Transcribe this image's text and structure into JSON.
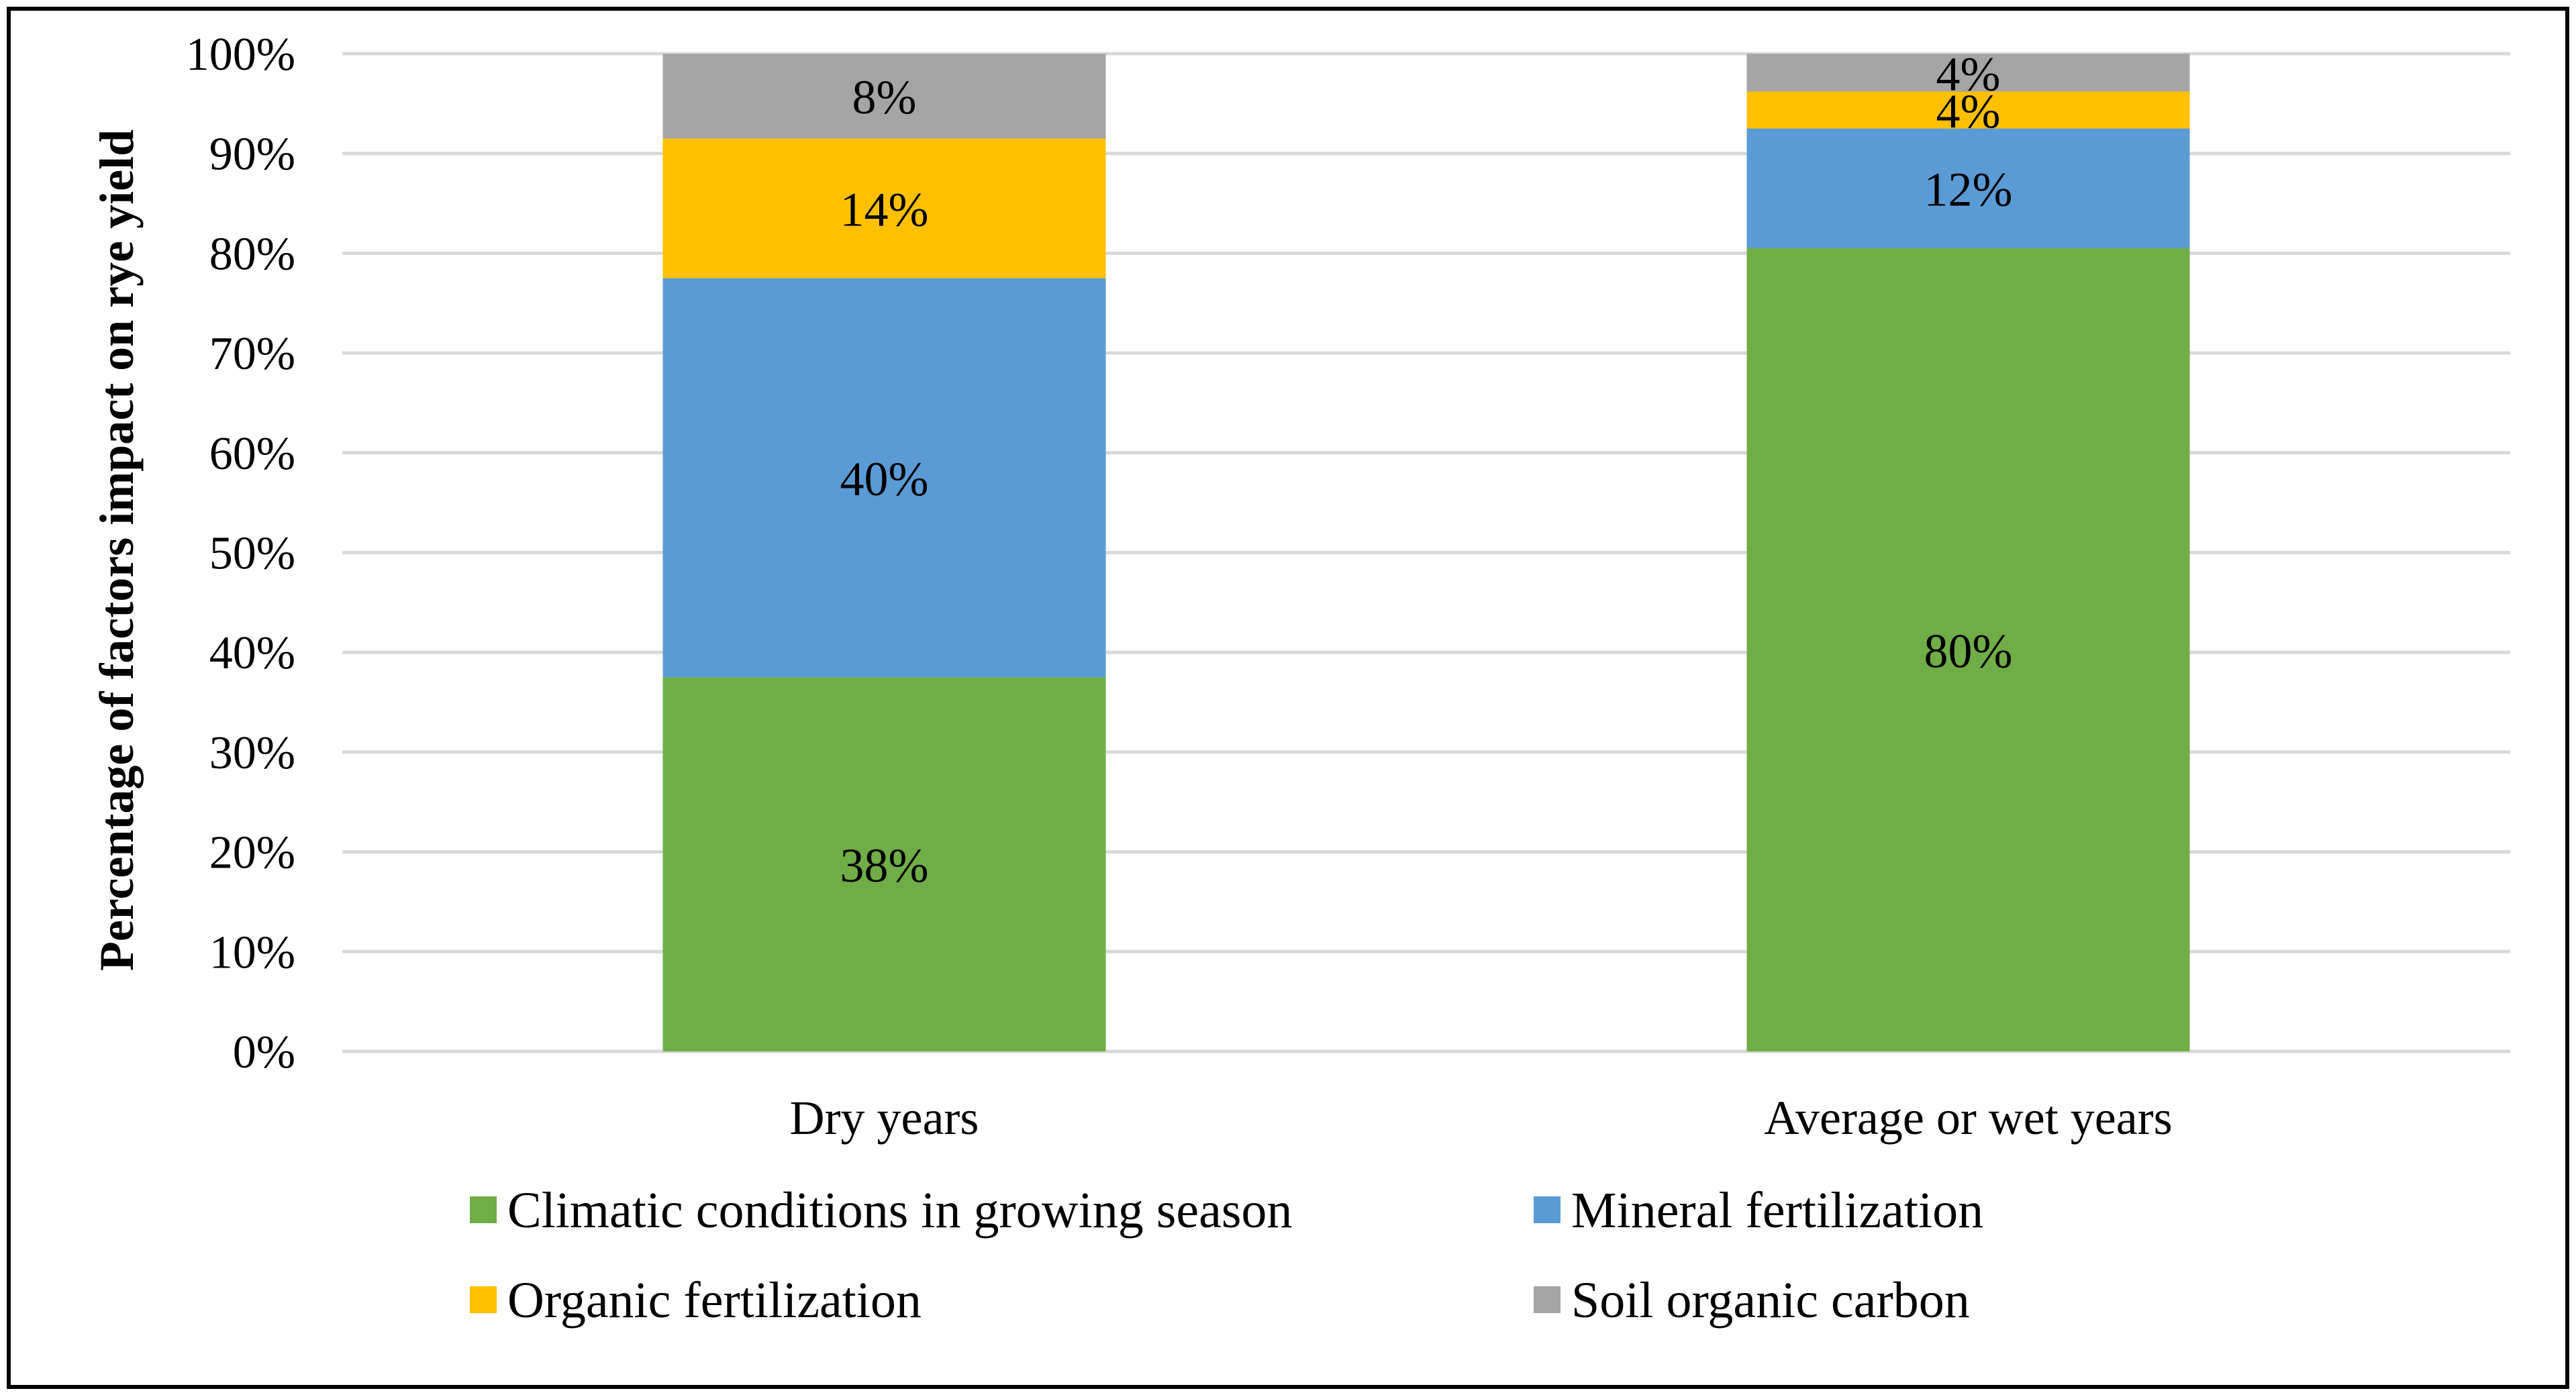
{
  "chart_data": {
    "type": "bar",
    "stacked": true,
    "title": "",
    "xlabel": "",
    "ylabel": "Percentage of factors impact on rye yield",
    "ylim": [
      0,
      100
    ],
    "ytick_step": 10,
    "grid": true,
    "legend_position": "bottom",
    "categories": [
      "Dry years",
      "Average or wet years"
    ],
    "series": [
      {
        "name": "Climatic conditions in growing season",
        "color": "#70AD47",
        "values": [
          37.5,
          80.5
        ],
        "labels": [
          "38%",
          "80%"
        ]
      },
      {
        "name": "Mineral fertilization",
        "color": "#5B9BD5",
        "values": [
          40,
          12
        ],
        "labels": [
          "40%",
          "12%"
        ]
      },
      {
        "name": "Organic fertilization",
        "color": "#FFC000",
        "values": [
          14,
          3.7
        ],
        "labels": [
          "14%",
          "4%"
        ]
      },
      {
        "name": "Soil organic carbon",
        "color": "#A5A5A5",
        "values": [
          8.5,
          3.8
        ],
        "labels": [
          "8%",
          "4%"
        ]
      }
    ]
  }
}
